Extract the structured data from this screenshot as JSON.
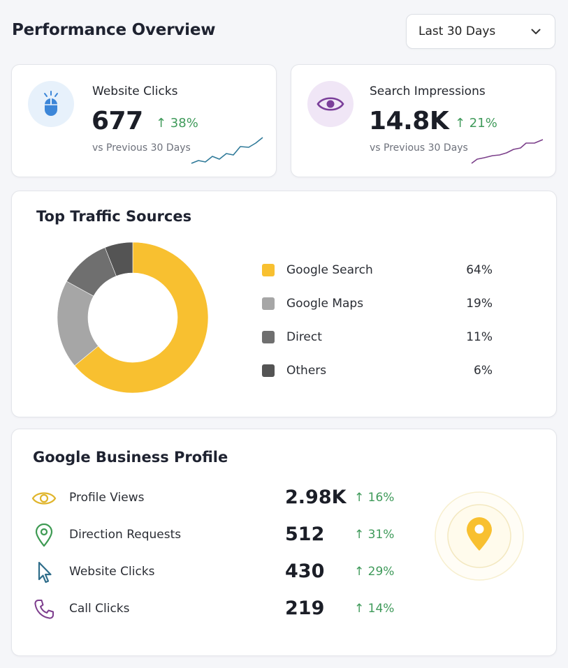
{
  "header": {
    "title": "Performance Overview",
    "range_select": {
      "value": "Last 30 Days"
    }
  },
  "kpis": [
    {
      "label": "Website Clicks",
      "value": "677",
      "change": "↑ 38%",
      "sub": "vs Previous 30 Days",
      "icon": "mouse-icon",
      "accent": "#3c86d8",
      "icon_bg": "#e7f1fb"
    },
    {
      "label": "Search Impressions",
      "value": "14.8K",
      "change": "↑ 21%",
      "sub": "vs Previous 30 Days",
      "icon": "eye-icon",
      "accent": "#7b3f9a",
      "icon_bg": "#f0e6f6"
    }
  ],
  "traffic": {
    "title": "Top Traffic Sources",
    "sources": [
      {
        "label": "Google Search",
        "value": "64%",
        "pct": 64,
        "color": "#f8c030"
      },
      {
        "label": "Google Maps",
        "value": "19%",
        "pct": 19,
        "color": "#a6a6a6"
      },
      {
        "label": "Direct",
        "value": "11%",
        "pct": 11,
        "color": "#6f6f6f"
      },
      {
        "label": "Others",
        "value": "6%",
        "pct": 6,
        "color": "#545454"
      }
    ]
  },
  "gbp": {
    "title": "Google Business Profile",
    "rows": [
      {
        "label": "Profile Views",
        "value": "2.98K",
        "change": "↑ 16%",
        "icon": "eye-outline-icon",
        "color": "#e0b52c"
      },
      {
        "label": "Direction Requests",
        "value": "512",
        "change": "↑ 31%",
        "icon": "map-pin-icon",
        "color": "#3d9a52"
      },
      {
        "label": "Website Clicks",
        "value": "430",
        "change": "↑ 29%",
        "icon": "cursor-icon",
        "color": "#2f6d8a"
      },
      {
        "label": "Call Clicks",
        "value": "219",
        "change": "↑ 14%",
        "icon": "phone-icon",
        "color": "#7d3d8d"
      }
    ]
  },
  "colors": {
    "positive": "#3f9a5a",
    "pin": "#f8c030"
  }
}
